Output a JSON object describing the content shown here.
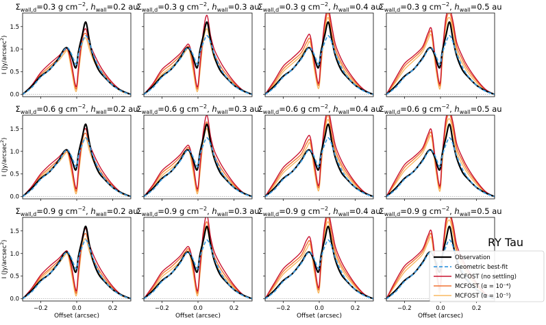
{
  "figure": {
    "star_label": "RY Tau",
    "xlabel": "Offset (arcsec)",
    "ylabel_main": "I (Jy/arcsec",
    "ylabel_sup": "2",
    "ylabel_close": ")",
    "xticks": [
      "−0.2",
      "0.0",
      "0.2"
    ],
    "yticks": [
      "0.0",
      "0.5",
      "1.0",
      "1.5"
    ],
    "colors": {
      "observation": "#000000",
      "geometric": "#3c9be0",
      "mcfost_nosettle": "#c8102e",
      "mcfost_a4": "#f07030",
      "mcfost_a5": "#f8b860"
    }
  },
  "legend": {
    "observation": "Observation",
    "geometric": "Geometric best-fit",
    "mcfost_nosettle": "MCFOST (no settling)",
    "mcfost_a4": "MCFOST (α = 10⁻⁴)",
    "mcfost_a5": "MCFOST (α = 10⁻⁵)"
  },
  "panels": [
    {
      "sigma": "0.3",
      "h": "0.2"
    },
    {
      "sigma": "0.3",
      "h": "0.3"
    },
    {
      "sigma": "0.3",
      "h": "0.4"
    },
    {
      "sigma": "0.3",
      "h": "0.5"
    },
    {
      "sigma": "0.6",
      "h": "0.2"
    },
    {
      "sigma": "0.6",
      "h": "0.3"
    },
    {
      "sigma": "0.6",
      "h": "0.4"
    },
    {
      "sigma": "0.6",
      "h": "0.5"
    },
    {
      "sigma": "0.9",
      "h": "0.2"
    },
    {
      "sigma": "0.9",
      "h": "0.3"
    },
    {
      "sigma": "0.9",
      "h": "0.4"
    },
    {
      "sigma": "0.9",
      "h": "0.5"
    }
  ],
  "chart_data": {
    "type": "line",
    "layout": "3x4 grid of line panels",
    "xlabel": "Offset (arcsec)",
    "ylabel": "I (Jy/arcsec^2)",
    "xlim": [
      -0.3,
      0.3
    ],
    "ylim": [
      -0.05,
      1.8
    ],
    "grid": false,
    "legend_position": "bottom-right of last panel",
    "x": [
      -0.3,
      -0.25,
      -0.2,
      -0.15,
      -0.1,
      -0.07,
      -0.05,
      -0.03,
      -0.01,
      0.0,
      0.01,
      0.03,
      0.05,
      0.07,
      0.09,
      0.12,
      0.15,
      0.2,
      0.25,
      0.3
    ],
    "observation": [
      0.0,
      0.18,
      0.4,
      0.55,
      0.8,
      1.0,
      1.02,
      0.85,
      0.6,
      0.65,
      0.95,
      1.3,
      1.6,
      1.2,
      0.85,
      0.55,
      0.4,
      0.2,
      0.08,
      0.0
    ],
    "geometric": [
      0.0,
      0.15,
      0.38,
      0.55,
      0.78,
      0.98,
      1.03,
      0.9,
      0.7,
      0.68,
      0.9,
      1.15,
      1.3,
      1.15,
      0.9,
      0.62,
      0.42,
      0.2,
      0.07,
      0.0
    ],
    "mcfost_rows": [
      {
        "sigma": "0.3",
        "panels": [
          {
            "h": "0.2",
            "no_settling": [
              0.0,
              0.2,
              0.48,
              0.68,
              0.85,
              0.98,
              1.0,
              0.7,
              0.25,
              0.2,
              0.6,
              1.25,
              1.45,
              1.15,
              0.95,
              0.7,
              0.5,
              0.25,
              0.08,
              0.0
            ],
            "alpha_1e-4": [
              0.0,
              0.18,
              0.44,
              0.62,
              0.8,
              0.95,
              1.0,
              0.65,
              0.2,
              0.15,
              0.55,
              1.2,
              1.35,
              1.1,
              0.85,
              0.62,
              0.45,
              0.22,
              0.07,
              0.0
            ],
            "alpha_1e-5": [
              0.0,
              0.16,
              0.4,
              0.58,
              0.75,
              0.9,
              0.95,
              0.55,
              0.12,
              0.1,
              0.45,
              1.1,
              1.25,
              1.0,
              0.78,
              0.56,
              0.4,
              0.2,
              0.06,
              0.0
            ]
          },
          {
            "h": "0.3",
            "no_settling": [
              0.0,
              0.24,
              0.55,
              0.72,
              0.9,
              1.05,
              1.1,
              0.8,
              0.25,
              0.2,
              0.6,
              1.4,
              1.75,
              1.3,
              1.0,
              0.75,
              0.55,
              0.28,
              0.09,
              0.0
            ],
            "alpha_1e-4": [
              0.0,
              0.21,
              0.5,
              0.66,
              0.85,
              1.0,
              1.05,
              0.7,
              0.2,
              0.15,
              0.55,
              1.3,
              1.6,
              1.2,
              0.9,
              0.66,
              0.48,
              0.25,
              0.08,
              0.0
            ],
            "alpha_1e-5": [
              0.0,
              0.18,
              0.44,
              0.6,
              0.78,
              0.95,
              1.0,
              0.6,
              0.12,
              0.1,
              0.45,
              1.2,
              1.45,
              1.1,
              0.8,
              0.58,
              0.42,
              0.22,
              0.07,
              0.0
            ]
          },
          {
            "h": "0.4",
            "no_settling": [
              0.0,
              0.3,
              0.62,
              0.8,
              1.0,
              1.25,
              1.3,
              0.8,
              0.3,
              0.3,
              0.8,
              1.6,
              1.9,
              1.5,
              1.1,
              0.8,
              0.58,
              0.3,
              0.1,
              0.0
            ],
            "alpha_1e-4": [
              0.0,
              0.26,
              0.56,
              0.74,
              0.92,
              1.15,
              1.22,
              0.72,
              0.25,
              0.25,
              0.72,
              1.5,
              1.8,
              1.35,
              1.0,
              0.72,
              0.52,
              0.27,
              0.09,
              0.0
            ],
            "alpha_1e-5": [
              0.0,
              0.22,
              0.5,
              0.68,
              0.86,
              1.05,
              1.15,
              0.62,
              0.18,
              0.18,
              0.62,
              1.4,
              1.7,
              1.25,
              0.92,
              0.66,
              0.46,
              0.24,
              0.08,
              0.0
            ]
          },
          {
            "h": "0.5",
            "no_settling": [
              0.0,
              0.35,
              0.68,
              0.85,
              1.05,
              1.35,
              1.45,
              0.85,
              0.3,
              0.3,
              0.9,
              1.7,
              1.9,
              1.6,
              1.15,
              0.85,
              0.62,
              0.33,
              0.11,
              0.0
            ],
            "alpha_1e-4": [
              0.0,
              0.3,
              0.62,
              0.8,
              1.0,
              1.28,
              1.38,
              0.78,
              0.25,
              0.25,
              0.82,
              1.6,
              1.8,
              1.5,
              1.05,
              0.78,
              0.56,
              0.3,
              0.1,
              0.0
            ],
            "alpha_1e-5": [
              0.0,
              0.26,
              0.55,
              0.74,
              0.94,
              1.2,
              1.3,
              0.68,
              0.18,
              0.18,
              0.72,
              1.5,
              1.7,
              1.4,
              0.96,
              0.7,
              0.5,
              0.26,
              0.09,
              0.0
            ]
          }
        ]
      },
      {
        "sigma": "0.6",
        "panels": [
          {
            "h": "0.2",
            "no_settling": [
              0.0,
              0.22,
              0.5,
              0.7,
              0.87,
              1.0,
              1.02,
              0.72,
              0.26,
              0.2,
              0.62,
              1.3,
              1.5,
              1.18,
              0.97,
              0.72,
              0.52,
              0.26,
              0.08,
              0.0
            ],
            "alpha_1e-4": [
              0.0,
              0.19,
              0.46,
              0.64,
              0.82,
              0.96,
              1.0,
              0.66,
              0.2,
              0.15,
              0.56,
              1.22,
              1.4,
              1.12,
              0.87,
              0.64,
              0.46,
              0.23,
              0.07,
              0.0
            ],
            "alpha_1e-5": [
              0.0,
              0.17,
              0.42,
              0.6,
              0.76,
              0.92,
              0.96,
              0.56,
              0.12,
              0.1,
              0.46,
              1.12,
              1.3,
              1.02,
              0.8,
              0.58,
              0.41,
              0.21,
              0.06,
              0.0
            ]
          },
          {
            "h": "0.3",
            "no_settling": [
              0.0,
              0.26,
              0.57,
              0.74,
              0.92,
              1.08,
              1.12,
              0.82,
              0.26,
              0.2,
              0.62,
              1.45,
              1.8,
              1.33,
              1.02,
              0.77,
              0.57,
              0.29,
              0.09,
              0.0
            ],
            "alpha_1e-4": [
              0.0,
              0.23,
              0.52,
              0.68,
              0.87,
              1.02,
              1.07,
              0.72,
              0.21,
              0.15,
              0.57,
              1.35,
              1.65,
              1.23,
              0.92,
              0.68,
              0.5,
              0.26,
              0.08,
              0.0
            ],
            "alpha_1e-5": [
              0.0,
              0.19,
              0.46,
              0.62,
              0.8,
              0.97,
              1.02,
              0.62,
              0.13,
              0.1,
              0.47,
              1.24,
              1.5,
              1.12,
              0.82,
              0.6,
              0.44,
              0.23,
              0.07,
              0.0
            ]
          },
          {
            "h": "0.4",
            "no_settling": [
              0.0,
              0.32,
              0.64,
              0.82,
              1.02,
              1.28,
              1.32,
              0.82,
              0.3,
              0.3,
              0.82,
              1.62,
              1.9,
              1.52,
              1.12,
              0.82,
              0.6,
              0.31,
              0.1,
              0.0
            ],
            "alpha_1e-4": [
              0.0,
              0.28,
              0.58,
              0.76,
              0.94,
              1.18,
              1.24,
              0.74,
              0.25,
              0.25,
              0.74,
              1.52,
              1.8,
              1.38,
              1.02,
              0.74,
              0.54,
              0.28,
              0.09,
              0.0
            ],
            "alpha_1e-5": [
              0.0,
              0.24,
              0.52,
              0.7,
              0.88,
              1.08,
              1.17,
              0.64,
              0.18,
              0.18,
              0.64,
              1.42,
              1.7,
              1.27,
              0.94,
              0.68,
              0.48,
              0.25,
              0.08,
              0.0
            ]
          },
          {
            "h": "0.5",
            "no_settling": [
              0.0,
              0.37,
              0.7,
              0.87,
              1.07,
              1.37,
              1.47,
              0.87,
              0.3,
              0.3,
              0.92,
              1.72,
              1.9,
              1.62,
              1.17,
              0.87,
              0.64,
              0.34,
              0.11,
              0.0
            ],
            "alpha_1e-4": [
              0.0,
              0.32,
              0.64,
              0.82,
              1.02,
              1.3,
              1.4,
              0.8,
              0.25,
              0.25,
              0.84,
              1.62,
              1.82,
              1.52,
              1.07,
              0.8,
              0.58,
              0.31,
              0.1,
              0.0
            ],
            "alpha_1e-5": [
              0.0,
              0.28,
              0.57,
              0.76,
              0.96,
              1.22,
              1.32,
              0.7,
              0.18,
              0.18,
              0.74,
              1.52,
              1.72,
              1.42,
              0.98,
              0.72,
              0.52,
              0.27,
              0.09,
              0.0
            ]
          }
        ]
      },
      {
        "sigma": "0.9",
        "panels": [
          {
            "h": "0.2",
            "no_settling": [
              0.0,
              0.23,
              0.52,
              0.72,
              0.89,
              1.02,
              1.04,
              0.74,
              0.27,
              0.2,
              0.64,
              1.34,
              1.55,
              1.21,
              0.99,
              0.74,
              0.54,
              0.27,
              0.08,
              0.0
            ],
            "alpha_1e-4": [
              0.0,
              0.2,
              0.48,
              0.66,
              0.84,
              0.98,
              1.02,
              0.68,
              0.21,
              0.15,
              0.58,
              1.25,
              1.44,
              1.15,
              0.89,
              0.66,
              0.48,
              0.24,
              0.07,
              0.0
            ],
            "alpha_1e-5": [
              0.0,
              0.18,
              0.44,
              0.62,
              0.78,
              0.94,
              0.98,
              0.58,
              0.13,
              0.1,
              0.48,
              1.15,
              1.33,
              1.05,
              0.82,
              0.6,
              0.43,
              0.22,
              0.06,
              0.0
            ]
          },
          {
            "h": "0.3",
            "no_settling": [
              0.0,
              0.28,
              0.59,
              0.76,
              0.94,
              1.1,
              1.14,
              0.84,
              0.27,
              0.2,
              0.64,
              1.5,
              1.85,
              1.36,
              1.04,
              0.79,
              0.59,
              0.3,
              0.09,
              0.0
            ],
            "alpha_1e-4": [
              0.0,
              0.24,
              0.54,
              0.7,
              0.89,
              1.04,
              1.09,
              0.74,
              0.22,
              0.15,
              0.59,
              1.4,
              1.7,
              1.26,
              0.94,
              0.7,
              0.52,
              0.27,
              0.08,
              0.0
            ],
            "alpha_1e-5": [
              0.0,
              0.2,
              0.48,
              0.64,
              0.82,
              0.99,
              1.04,
              0.64,
              0.14,
              0.1,
              0.49,
              1.28,
              1.55,
              1.15,
              0.84,
              0.62,
              0.46,
              0.24,
              0.07,
              0.0
            ]
          },
          {
            "h": "0.4",
            "no_settling": [
              0.0,
              0.34,
              0.66,
              0.84,
              1.04,
              1.3,
              1.34,
              0.84,
              0.31,
              0.3,
              0.84,
              1.64,
              1.9,
              1.54,
              1.14,
              0.84,
              0.62,
              0.32,
              0.1,
              0.0
            ],
            "alpha_1e-4": [
              0.0,
              0.3,
              0.6,
              0.78,
              0.96,
              1.2,
              1.26,
              0.76,
              0.26,
              0.25,
              0.76,
              1.54,
              1.8,
              1.4,
              1.04,
              0.76,
              0.56,
              0.29,
              0.09,
              0.0
            ],
            "alpha_1e-5": [
              0.0,
              0.26,
              0.54,
              0.72,
              0.9,
              1.1,
              1.19,
              0.66,
              0.19,
              0.18,
              0.66,
              1.44,
              1.7,
              1.29,
              0.96,
              0.7,
              0.5,
              0.26,
              0.08,
              0.0
            ]
          },
          {
            "h": "0.5",
            "no_settling": [
              0.0,
              0.39,
              0.72,
              0.89,
              1.09,
              1.39,
              1.49,
              0.89,
              0.31,
              0.3,
              0.94,
              1.74,
              1.9,
              1.64,
              1.19,
              0.89,
              0.66,
              0.35,
              0.11,
              0.0
            ],
            "alpha_1e-4": [
              0.0,
              0.34,
              0.66,
              0.84,
              1.04,
              1.32,
              1.42,
              0.82,
              0.26,
              0.25,
              0.86,
              1.64,
              1.84,
              1.54,
              1.09,
              0.82,
              0.6,
              0.32,
              0.1,
              0.0
            ],
            "alpha_1e-5": [
              0.0,
              0.3,
              0.59,
              0.78,
              0.98,
              1.24,
              1.34,
              0.72,
              0.19,
              0.18,
              0.76,
              1.54,
              1.74,
              1.44,
              1.0,
              0.74,
              0.54,
              0.28,
              0.09,
              0.0
            ]
          }
        ]
      }
    ]
  }
}
